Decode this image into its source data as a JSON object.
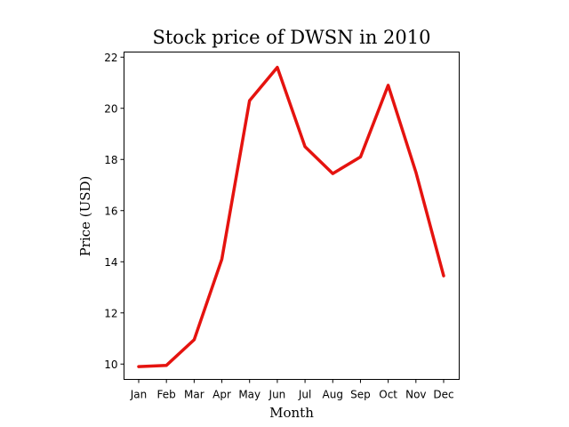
{
  "chart_data": {
    "type": "line",
    "title": "Stock price of DWSN in 2010",
    "xlabel": "Month",
    "ylabel": "Price (USD)",
    "categories": [
      "Jan",
      "Feb",
      "Mar",
      "Apr",
      "May",
      "Jun",
      "Jul",
      "Aug",
      "Sep",
      "Oct",
      "Nov",
      "Dec"
    ],
    "series": [
      {
        "values": [
          9.9,
          9.95,
          10.95,
          14.1,
          20.3,
          21.6,
          18.5,
          17.45,
          18.1,
          20.9,
          17.5,
          13.45
        ],
        "color": "#e5130f"
      }
    ],
    "yticks": [
      10,
      12,
      14,
      16,
      18,
      20,
      22
    ],
    "ylim": [
      9.4,
      22.2
    ],
    "grid": false,
    "legend": "none"
  }
}
